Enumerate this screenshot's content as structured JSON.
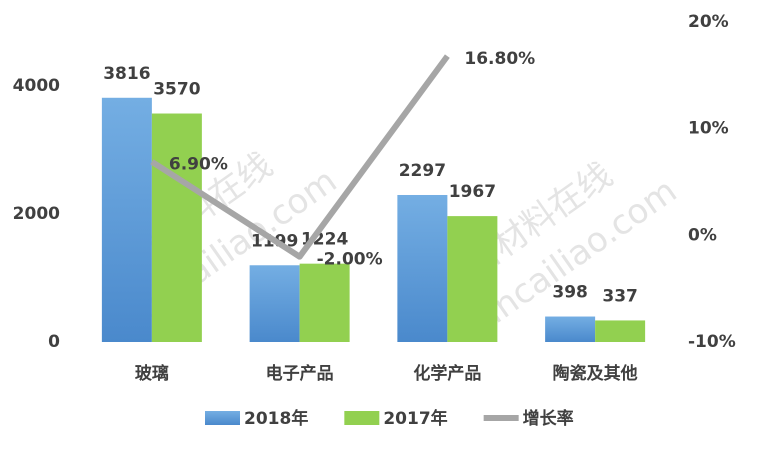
{
  "chart_data": {
    "type": "bar",
    "categories": [
      "玻璃",
      "电子产品",
      "化学产品",
      "陶瓷及其他"
    ],
    "series": [
      {
        "name": "2018年",
        "color": "#5b9bd5",
        "values": [
          3816,
          1199,
          2297,
          398
        ]
      },
      {
        "name": "2017年",
        "color": "#92d050",
        "values": [
          3570,
          1224,
          1967,
          337
        ]
      },
      {
        "name": "增长率",
        "color": "#a6a6a6",
        "type": "line",
        "axis": "y2",
        "values": [
          6.9,
          -2.0,
          16.8,
          null
        ],
        "value_labels": [
          "6.90%",
          "-2.00%",
          "16.80%",
          null
        ]
      }
    ],
    "ylim": [
      0,
      5000
    ],
    "yticks": [
      0,
      2000,
      4000
    ],
    "y2lim": [
      -10,
      20
    ],
    "y2ticks": [
      {
        "value": -10,
        "label": "-10%"
      },
      {
        "value": 0,
        "label": "0%"
      },
      {
        "value": 10,
        "label": "10%"
      },
      {
        "value": 20,
        "label": "20%"
      }
    ],
    "legend": "bottom",
    "watermark": "新材料在线",
    "watermark_url": "xincailiao.com"
  }
}
